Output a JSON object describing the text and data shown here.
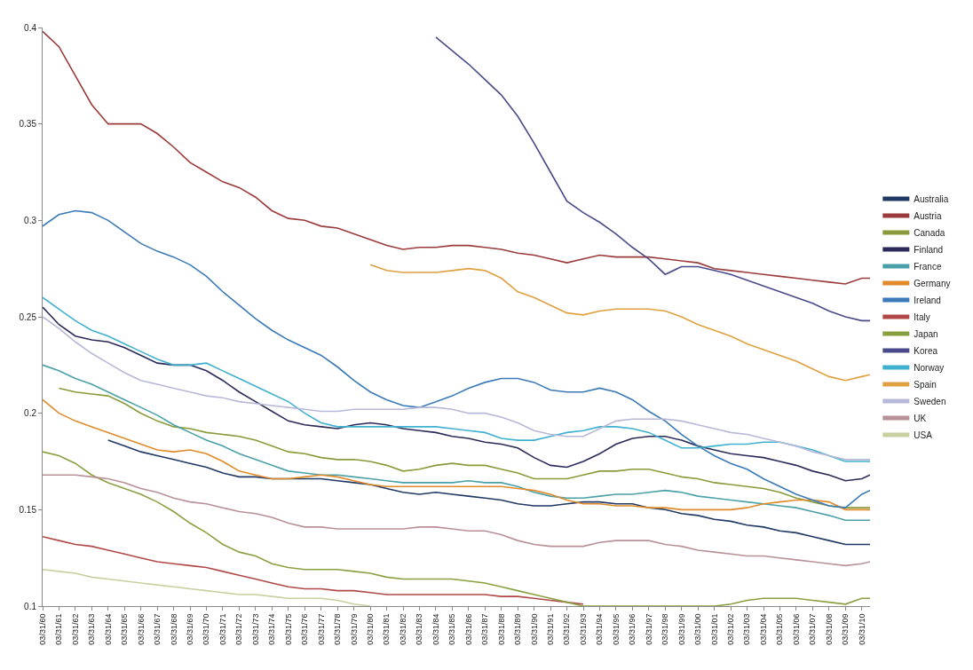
{
  "chart_data": {
    "type": "line",
    "x": [
      "1960-03-31",
      "1961-03-31",
      "1962-03-31",
      "1963-03-31",
      "1964-03-31",
      "1965-03-31",
      "1966-03-31",
      "1967-03-31",
      "1968-03-31",
      "1969-03-31",
      "1970-03-31",
      "1971-03-31",
      "1972-03-31",
      "1973-03-31",
      "1974-03-31",
      "1975-03-31",
      "1976-03-31",
      "1977-03-31",
      "1978-03-31",
      "1979-03-31",
      "1980-03-31",
      "1981-03-31",
      "1982-03-31",
      "1983-03-31",
      "1984-03-31",
      "1985-03-31",
      "1986-03-31",
      "1987-03-31",
      "1988-03-31",
      "1989-03-31",
      "1990-03-31",
      "1991-03-31",
      "1992-03-31",
      "1993-03-31",
      "1994-03-31",
      "1995-03-31",
      "1996-03-31",
      "1997-03-31",
      "1998-03-31",
      "1999-03-31",
      "2000-03-31",
      "2001-03-31",
      "2002-03-31",
      "2003-03-31",
      "2004-03-31",
      "2005-03-31",
      "2006-03-31",
      "2007-03-31",
      "2008-03-31",
      "2009-03-31",
      "2010-03-31",
      "2010-09-30"
    ],
    "xlim": [
      "1960-03-31",
      "2010-09-30"
    ],
    "xticks": [
      {
        "value": "1960-03-31",
        "label": "03/31/60"
      },
      {
        "value": "1961-03-31",
        "label": "03/31/61"
      },
      {
        "value": "1962-03-31",
        "label": "03/31/62"
      },
      {
        "value": "1963-03-31",
        "label": "03/31/63"
      },
      {
        "value": "1964-03-31",
        "label": "03/31/64"
      },
      {
        "value": "1965-03-31",
        "label": "03/31/65"
      },
      {
        "value": "1966-03-31",
        "label": "03/31/66"
      },
      {
        "value": "1967-03-31",
        "label": "03/31/67"
      },
      {
        "value": "1968-03-31",
        "label": "03/31/68"
      },
      {
        "value": "1969-03-31",
        "label": "03/31/69"
      },
      {
        "value": "1970-03-31",
        "label": "03/31/70"
      },
      {
        "value": "1971-03-31",
        "label": "03/31/71"
      },
      {
        "value": "1972-03-31",
        "label": "03/31/72"
      },
      {
        "value": "1973-03-31",
        "label": "03/31/73"
      },
      {
        "value": "1974-03-31",
        "label": "03/31/74"
      },
      {
        "value": "1975-03-31",
        "label": "03/31/75"
      },
      {
        "value": "1976-03-31",
        "label": "03/31/76"
      },
      {
        "value": "1977-03-31",
        "label": "03/31/77"
      },
      {
        "value": "1978-03-31",
        "label": "03/31/78"
      },
      {
        "value": "1979-03-31",
        "label": "03/31/79"
      },
      {
        "value": "1980-03-31",
        "label": "03/31/80"
      },
      {
        "value": "1981-03-31",
        "label": "03/31/81"
      },
      {
        "value": "1982-03-31",
        "label": "03/31/82"
      },
      {
        "value": "1983-03-31",
        "label": "03/31/83"
      },
      {
        "value": "1984-03-31",
        "label": "03/31/84"
      },
      {
        "value": "1985-03-31",
        "label": "03/31/85"
      },
      {
        "value": "1986-03-31",
        "label": "03/31/86"
      },
      {
        "value": "1987-03-31",
        "label": "03/31/87"
      },
      {
        "value": "1988-03-31",
        "label": "03/31/88"
      },
      {
        "value": "1989-03-31",
        "label": "03/31/89"
      },
      {
        "value": "1990-03-31",
        "label": "03/31/90"
      },
      {
        "value": "1991-03-31",
        "label": "03/31/91"
      },
      {
        "value": "1992-03-31",
        "label": "03/31/92"
      },
      {
        "value": "1993-03-31",
        "label": "03/31/93"
      },
      {
        "value": "1994-03-31",
        "label": "03/31/94"
      },
      {
        "value": "1995-03-31",
        "label": "03/31/95"
      },
      {
        "value": "1996-03-31",
        "label": "03/31/96"
      },
      {
        "value": "1997-03-31",
        "label": "03/31/97"
      },
      {
        "value": "1998-03-31",
        "label": "03/31/98"
      },
      {
        "value": "1999-03-31",
        "label": "03/31/99"
      },
      {
        "value": "2000-03-31",
        "label": "03/31/00"
      },
      {
        "value": "2001-03-31",
        "label": "03/31/01"
      },
      {
        "value": "2002-03-31",
        "label": "03/31/02"
      },
      {
        "value": "2003-03-31",
        "label": "03/31/03"
      },
      {
        "value": "2004-03-31",
        "label": "03/31/04"
      },
      {
        "value": "2005-03-31",
        "label": "03/31/05"
      },
      {
        "value": "2006-03-31",
        "label": "03/31/06"
      },
      {
        "value": "2007-03-31",
        "label": "03/31/07"
      },
      {
        "value": "2008-03-31",
        "label": "03/31/08"
      },
      {
        "value": "2009-03-31",
        "label": "03/31/09"
      },
      {
        "value": "2010-03-31",
        "label": "03/31/10"
      }
    ],
    "ylim": [
      0.1,
      0.4
    ],
    "yticks": [
      0.1,
      0.15,
      0.2,
      0.25,
      0.3,
      0.35,
      0.4
    ],
    "legend": "right",
    "line_style": "solid",
    "series": [
      {
        "name": "Australia",
        "color": "#1f3864",
        "values": [
          null,
          null,
          null,
          null,
          0.186,
          0.183,
          0.18,
          0.178,
          0.176,
          0.174,
          0.172,
          0.169,
          0.167,
          0.167,
          0.166,
          0.166,
          0.166,
          0.166,
          0.165,
          0.164,
          0.163,
          0.161,
          0.159,
          0.158,
          0.159,
          0.158,
          0.157,
          0.156,
          0.155,
          0.153,
          0.152,
          0.152,
          0.153,
          0.154,
          0.154,
          0.153,
          0.153,
          0.151,
          0.15,
          0.148,
          0.147,
          0.145,
          0.144,
          0.142,
          0.141,
          0.139,
          0.138,
          0.136,
          0.134,
          0.132,
          0.132,
          0.132
        ]
      },
      {
        "name": "Austria",
        "color": "#9b3a3a",
        "values": [
          0.398,
          0.39,
          0.375,
          0.36,
          0.35,
          0.35,
          0.35,
          0.345,
          0.338,
          0.33,
          0.325,
          0.32,
          0.317,
          0.312,
          0.305,
          0.301,
          0.3,
          0.297,
          0.296,
          0.293,
          0.29,
          0.287,
          0.285,
          0.286,
          0.286,
          0.287,
          0.287,
          0.286,
          0.285,
          0.283,
          0.282,
          0.28,
          0.278,
          0.28,
          0.282,
          0.281,
          0.281,
          0.281,
          0.28,
          0.279,
          0.278,
          0.275,
          0.274,
          0.273,
          0.272,
          0.271,
          0.27,
          0.269,
          0.268,
          0.267,
          0.27,
          0.27
        ]
      },
      {
        "name": "Canada",
        "color": "#8a9a3a",
        "values": [
          null,
          0.213,
          0.211,
          0.21,
          0.209,
          0.205,
          0.2,
          0.196,
          0.193,
          0.192,
          0.19,
          0.189,
          0.188,
          0.186,
          0.183,
          0.18,
          0.179,
          0.177,
          0.176,
          0.176,
          0.175,
          0.173,
          0.17,
          0.171,
          0.173,
          0.174,
          0.173,
          0.173,
          0.171,
          0.169,
          0.166,
          0.166,
          0.166,
          0.168,
          0.17,
          0.17,
          0.171,
          0.171,
          0.169,
          0.167,
          0.166,
          0.164,
          0.163,
          0.162,
          0.161,
          0.159,
          0.156,
          0.154,
          0.152,
          0.151,
          0.151,
          0.151
        ]
      },
      {
        "name": "Finland",
        "color": "#2a2a5a",
        "values": [
          0.255,
          0.246,
          0.24,
          0.238,
          0.237,
          0.234,
          0.23,
          0.226,
          0.225,
          0.225,
          0.222,
          0.217,
          0.211,
          0.206,
          0.201,
          0.196,
          0.194,
          0.193,
          0.192,
          0.194,
          0.195,
          0.194,
          0.192,
          0.191,
          0.19,
          0.188,
          0.187,
          0.185,
          0.184,
          0.182,
          0.177,
          0.173,
          0.172,
          0.175,
          0.179,
          0.184,
          0.187,
          0.188,
          0.188,
          0.186,
          0.183,
          0.181,
          0.179,
          0.178,
          0.177,
          0.175,
          0.173,
          0.17,
          0.168,
          0.165,
          0.166,
          0.168
        ]
      },
      {
        "name": "France",
        "color": "#4aa0a8",
        "values": [
          0.225,
          0.222,
          0.218,
          0.215,
          0.211,
          0.207,
          0.203,
          0.199,
          0.194,
          0.19,
          0.186,
          0.183,
          0.179,
          0.176,
          0.173,
          0.17,
          0.169,
          0.168,
          0.168,
          0.167,
          0.166,
          0.165,
          0.164,
          0.164,
          0.164,
          0.164,
          0.165,
          0.164,
          0.164,
          0.162,
          0.159,
          0.157,
          0.156,
          0.156,
          0.157,
          0.158,
          0.158,
          0.159,
          0.16,
          0.159,
          0.157,
          0.156,
          0.155,
          0.154,
          0.153,
          0.152,
          0.151,
          0.149,
          0.147,
          0.1445,
          0.1445,
          0.1445
        ]
      },
      {
        "name": "Germany",
        "color": "#e08a2a",
        "values": [
          0.207,
          0.2,
          0.196,
          0.193,
          0.19,
          0.187,
          0.184,
          0.181,
          0.18,
          0.181,
          0.179,
          0.175,
          0.17,
          0.168,
          0.166,
          0.166,
          0.167,
          0.168,
          0.167,
          0.165,
          0.163,
          0.162,
          0.162,
          0.162,
          0.162,
          0.162,
          0.162,
          0.162,
          0.162,
          0.161,
          0.16,
          0.158,
          0.155,
          0.153,
          0.153,
          0.152,
          0.152,
          0.151,
          0.151,
          0.15,
          0.15,
          0.15,
          0.15,
          0.151,
          0.153,
          0.154,
          0.155,
          0.155,
          0.154,
          0.15,
          0.15,
          0.15
        ]
      },
      {
        "name": "Ireland",
        "color": "#3a7ab8",
        "values": [
          0.297,
          0.303,
          0.305,
          0.304,
          0.3,
          0.294,
          0.288,
          0.284,
          0.281,
          0.277,
          0.271,
          0.263,
          0.256,
          0.249,
          0.243,
          0.238,
          0.234,
          0.23,
          0.224,
          0.217,
          0.211,
          0.207,
          0.204,
          0.203,
          0.206,
          0.209,
          0.213,
          0.216,
          0.218,
          0.218,
          0.216,
          0.212,
          0.211,
          0.211,
          0.213,
          0.211,
          0.207,
          0.201,
          0.196,
          0.189,
          0.183,
          0.178,
          0.174,
          0.171,
          0.166,
          0.162,
          0.158,
          0.155,
          0.152,
          0.151,
          0.158,
          0.16
        ]
      },
      {
        "name": "Italy",
        "color": "#b04848",
        "values": [
          0.136,
          0.134,
          0.132,
          0.131,
          0.129,
          0.127,
          0.125,
          0.123,
          0.122,
          0.121,
          0.12,
          0.118,
          0.116,
          0.114,
          0.112,
          0.11,
          0.109,
          0.109,
          0.108,
          0.108,
          0.107,
          0.106,
          0.106,
          0.106,
          0.106,
          0.106,
          0.106,
          0.106,
          0.105,
          0.105,
          0.104,
          0.103,
          0.102,
          0.101,
          null,
          null,
          null,
          null,
          null,
          null,
          null,
          null,
          null,
          null,
          null,
          null,
          null,
          null,
          null,
          null,
          null,
          null
        ]
      },
      {
        "name": "Japan",
        "color": "#8aa040",
        "values": [
          0.18,
          0.178,
          0.174,
          0.168,
          0.164,
          0.161,
          0.158,
          0.154,
          0.149,
          0.143,
          0.138,
          0.132,
          0.128,
          0.126,
          0.122,
          0.12,
          0.119,
          0.119,
          0.119,
          0.118,
          0.117,
          0.115,
          0.114,
          0.114,
          0.114,
          0.114,
          0.113,
          0.112,
          0.11,
          0.108,
          0.106,
          0.104,
          0.102,
          0.1,
          0.1,
          0.1,
          0.1,
          0.1,
          0.1,
          0.1,
          0.1,
          0.1,
          0.101,
          0.103,
          0.104,
          0.104,
          0.104,
          0.103,
          0.102,
          0.101,
          0.104,
          0.104
        ]
      },
      {
        "name": "Korea",
        "color": "#4a4a8a",
        "values": [
          null,
          null,
          null,
          null,
          null,
          null,
          null,
          null,
          null,
          null,
          null,
          null,
          null,
          null,
          null,
          null,
          null,
          null,
          null,
          null,
          null,
          null,
          null,
          null,
          0.395,
          0.388,
          0.381,
          0.373,
          0.365,
          0.354,
          0.34,
          0.325,
          0.31,
          0.304,
          0.299,
          0.293,
          0.286,
          0.28,
          0.272,
          0.276,
          0.276,
          0.274,
          0.272,
          0.269,
          0.266,
          0.263,
          0.26,
          0.257,
          0.253,
          0.25,
          0.248,
          0.248
        ]
      },
      {
        "name": "Norway",
        "color": "#40b0d0",
        "values": [
          0.26,
          0.254,
          0.248,
          0.243,
          0.24,
          0.236,
          0.232,
          0.228,
          0.225,
          0.225,
          0.226,
          0.222,
          0.218,
          0.214,
          0.21,
          0.206,
          0.2,
          0.195,
          0.193,
          0.193,
          0.193,
          0.193,
          0.193,
          0.193,
          0.193,
          0.192,
          0.191,
          0.19,
          0.187,
          0.186,
          0.186,
          0.188,
          0.19,
          0.191,
          0.193,
          0.193,
          0.192,
          0.19,
          0.186,
          0.182,
          0.182,
          0.183,
          0.184,
          0.184,
          0.185,
          0.185,
          0.183,
          0.181,
          0.178,
          0.175,
          0.175,
          0.175
        ]
      },
      {
        "name": "Spain",
        "color": "#e0a040",
        "values": [
          null,
          null,
          null,
          null,
          null,
          null,
          null,
          null,
          null,
          null,
          null,
          null,
          null,
          null,
          null,
          null,
          null,
          null,
          null,
          null,
          0.277,
          0.274,
          0.273,
          0.273,
          0.273,
          0.274,
          0.275,
          0.274,
          0.27,
          0.263,
          0.26,
          0.256,
          0.252,
          0.251,
          0.253,
          0.254,
          0.254,
          0.254,
          0.253,
          0.25,
          0.246,
          0.243,
          0.24,
          0.236,
          0.233,
          0.23,
          0.227,
          0.223,
          0.219,
          0.217,
          0.219,
          0.22
        ]
      },
      {
        "name": "Sweden",
        "color": "#b8b8d8",
        "values": [
          0.25,
          0.244,
          0.237,
          0.231,
          0.226,
          0.221,
          0.217,
          0.215,
          0.213,
          0.211,
          0.209,
          0.208,
          0.206,
          0.205,
          0.204,
          0.203,
          0.202,
          0.201,
          0.201,
          0.202,
          0.202,
          0.202,
          0.202,
          0.203,
          0.203,
          0.202,
          0.2,
          0.2,
          0.198,
          0.195,
          0.191,
          0.189,
          0.188,
          0.188,
          0.192,
          0.196,
          0.197,
          0.197,
          0.197,
          0.196,
          0.194,
          0.192,
          0.19,
          0.189,
          0.187,
          0.185,
          0.183,
          0.18,
          0.178,
          0.176,
          0.176,
          0.176
        ]
      },
      {
        "name": "UK",
        "color": "#b89098",
        "values": [
          0.168,
          0.168,
          0.168,
          0.167,
          0.166,
          0.164,
          0.161,
          0.159,
          0.156,
          0.154,
          0.153,
          0.151,
          0.149,
          0.148,
          0.146,
          0.143,
          0.141,
          0.141,
          0.14,
          0.14,
          0.14,
          0.14,
          0.14,
          0.141,
          0.141,
          0.14,
          0.139,
          0.139,
          0.137,
          0.134,
          0.132,
          0.131,
          0.131,
          0.131,
          0.133,
          0.134,
          0.134,
          0.134,
          0.132,
          0.131,
          0.129,
          0.128,
          0.127,
          0.126,
          0.126,
          0.125,
          0.124,
          0.123,
          0.122,
          0.121,
          0.122,
          0.123
        ]
      },
      {
        "name": "USA",
        "color": "#c8d0a0",
        "values": [
          0.119,
          0.118,
          0.117,
          0.115,
          0.114,
          0.113,
          0.112,
          0.111,
          0.11,
          0.109,
          0.108,
          0.107,
          0.106,
          0.106,
          0.105,
          0.104,
          0.104,
          0.104,
          0.103,
          0.101,
          0.1,
          null,
          null,
          null,
          null,
          null,
          null,
          null,
          null,
          null,
          null,
          null,
          null,
          null,
          null,
          null,
          null,
          null,
          null,
          null,
          null,
          null,
          null,
          null,
          null,
          null,
          null,
          null,
          null,
          null,
          null,
          null
        ]
      }
    ]
  }
}
